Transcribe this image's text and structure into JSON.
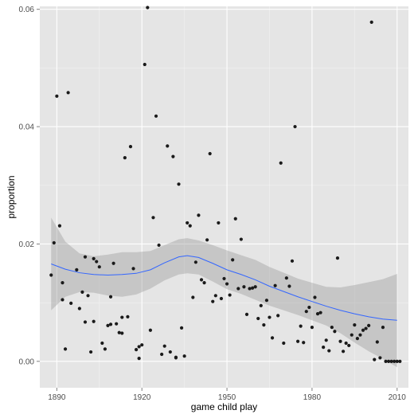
{
  "chart_data": {
    "type": "scatter",
    "xlabel": "game child play",
    "ylabel": "proportion",
    "xlim": [
      1884,
      2014
    ],
    "ylim": [
      -0.0045,
      0.0605
    ],
    "x_ticks": [
      1890,
      1920,
      1950,
      1980,
      2010
    ],
    "x_tick_labels": [
      "1890",
      "1920",
      "1950",
      "1980",
      "2010"
    ],
    "y_ticks": [
      0.0,
      0.02,
      0.04,
      0.06
    ],
    "y_tick_labels": [
      "0.00",
      "0.02",
      "0.04",
      "0.06"
    ],
    "grid": true,
    "legend": "none",
    "points": {
      "x": [
        1888,
        1889,
        1890,
        1891,
        1892,
        1892,
        1893,
        1894,
        1895,
        1897,
        1898,
        1899,
        1900,
        1900,
        1901,
        1902,
        1903,
        1903,
        1904,
        1905,
        1906,
        1907,
        1908,
        1909,
        1909,
        1910,
        1911,
        1912,
        1913,
        1913,
        1914,
        1915,
        1916,
        1917,
        1918,
        1919,
        1919,
        1920,
        1921,
        1922,
        1923,
        1924,
        1925,
        1926,
        1927,
        1928,
        1929,
        1930,
        1931,
        1932,
        1932,
        1933,
        1934,
        1935,
        1936,
        1937,
        1938,
        1939,
        1940,
        1941,
        1942,
        1943,
        1944,
        1945,
        1946,
        1947,
        1948,
        1949,
        1950,
        1951,
        1952,
        1953,
        1954,
        1955,
        1956,
        1957,
        1958,
        1959,
        1960,
        1961,
        1962,
        1963,
        1964,
        1965,
        1966,
        1967,
        1968,
        1969,
        1970,
        1971,
        1972,
        1973,
        1974,
        1975,
        1976,
        1977,
        1978,
        1979,
        1980,
        1981,
        1982,
        1983,
        1984,
        1985,
        1986,
        1987,
        1988,
        1989,
        1990,
        1991,
        1992,
        1993,
        1994,
        1995,
        1996,
        1997,
        1998,
        1999,
        2000,
        2001,
        2002,
        2003,
        2004,
        2005,
        2006,
        2007,
        2008,
        2009,
        2010,
        2011
      ],
      "y": [
        0.0147,
        0.0202,
        0.0452,
        0.0231,
        0.0105,
        0.0134,
        0.0021,
        0.0458,
        0.0099,
        0.0156,
        0.009,
        0.0118,
        0.0067,
        0.0178,
        0.0112,
        0.0016,
        0.0068,
        0.0175,
        0.017,
        0.0161,
        0.0031,
        0.0021,
        0.0061,
        0.011,
        0.0063,
        0.0167,
        0.0064,
        0.0049,
        0.0048,
        0.0075,
        0.0347,
        0.0076,
        0.0366,
        0.0158,
        0.002,
        0.0025,
        0.0005,
        0.0028,
        0.0506,
        0.0603,
        0.0053,
        0.0245,
        0.0418,
        0.0198,
        0.0012,
        0.0026,
        0.0367,
        0.0016,
        0.0349,
        0.0006,
        0.0007,
        0.0302,
        0.0057,
        0.0009,
        0.0236,
        0.0231,
        0.0109,
        0.0169,
        0.0249,
        0.0139,
        0.0134,
        0.0207,
        0.0354,
        0.0102,
        0.0112,
        0.0236,
        0.0107,
        0.0141,
        0.0132,
        0.0113,
        0.0173,
        0.0243,
        0.0124,
        0.0208,
        0.0127,
        0.008,
        0.0124,
        0.0125,
        0.0127,
        0.0073,
        0.0095,
        0.0062,
        0.0104,
        0.0075,
        0.004,
        0.0129,
        0.0078,
        0.0338,
        0.0031,
        0.0142,
        0.0128,
        0.0171,
        0.04,
        0.0034,
        0.006,
        0.0032,
        0.0085,
        0.0092,
        0.0058,
        0.0109,
        0.0081,
        0.0083,
        0.0024,
        0.0036,
        0.0018,
        0.0058,
        0.0051,
        0.0176,
        0.0034,
        0.0017,
        0.0031,
        0.0027,
        0.0045,
        0.0062,
        0.0039,
        0.0045,
        0.0053,
        0.0056,
        0.0061,
        0.0578,
        0.0003,
        0.0033,
        0.0006,
        0.0058,
        0.0,
        0.0,
        0.0,
        0.0,
        0.0,
        0.0
      ]
    },
    "smooth": {
      "x": [
        1888,
        1893,
        1898,
        1903,
        1908,
        1913,
        1918,
        1923,
        1928,
        1933,
        1936,
        1940,
        1945,
        1950,
        1955,
        1960,
        1965,
        1970,
        1975,
        1980,
        1985,
        1990,
        1995,
        2000,
        2005,
        2010
      ],
      "y": [
        0.0166,
        0.0157,
        0.0151,
        0.0148,
        0.0147,
        0.0148,
        0.015,
        0.0156,
        0.0168,
        0.0178,
        0.018,
        0.0177,
        0.0167,
        0.0156,
        0.0148,
        0.0139,
        0.0128,
        0.0119,
        0.011,
        0.0102,
        0.0094,
        0.0087,
        0.0081,
        0.0076,
        0.0072,
        0.007
      ],
      "lower": [
        0.0087,
        0.011,
        0.0118,
        0.0117,
        0.0112,
        0.011,
        0.0114,
        0.0124,
        0.0138,
        0.0148,
        0.015,
        0.0148,
        0.0136,
        0.0123,
        0.0115,
        0.0105,
        0.0095,
        0.0087,
        0.0079,
        0.007,
        0.0061,
        0.0048,
        0.0032,
        0.0017,
        0.0004,
        -0.001
      ],
      "upper": [
        0.0245,
        0.0204,
        0.0184,
        0.0179,
        0.0182,
        0.0186,
        0.0186,
        0.0188,
        0.0198,
        0.0208,
        0.021,
        0.0206,
        0.0198,
        0.0189,
        0.0181,
        0.0173,
        0.0161,
        0.0151,
        0.0141,
        0.0134,
        0.0127,
        0.0126,
        0.013,
        0.0135,
        0.014,
        0.0149
      ]
    },
    "colors": {
      "panel_background": "#e5e5e5",
      "grid_major": "#ffffff",
      "grid_minor": "#f2f2f2",
      "point": "#1a1a1a",
      "smooth_line": "#3366ff",
      "ribbon": "#999999"
    }
  }
}
